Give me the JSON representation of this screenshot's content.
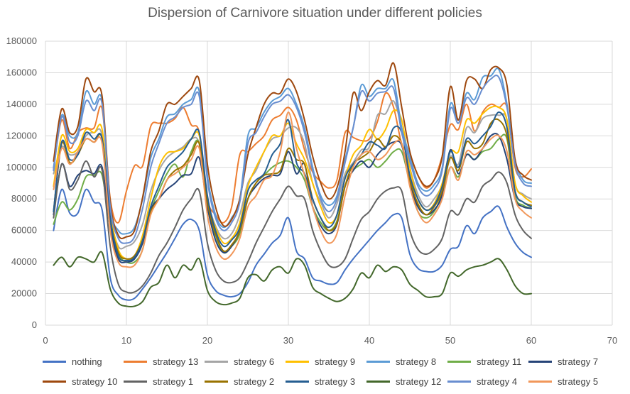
{
  "chart_data": {
    "type": "line",
    "title": "Dispersion of Carnivore situation under different policies",
    "xlabel": "",
    "ylabel": "",
    "xlim": [
      0,
      70
    ],
    "ylim": [
      0,
      180000
    ],
    "x_ticks": [
      0,
      10,
      20,
      30,
      40,
      50,
      60,
      70
    ],
    "y_ticks": [
      0,
      20000,
      40000,
      60000,
      80000,
      100000,
      120000,
      140000,
      160000,
      180000
    ],
    "grid": true,
    "legend_position": "bottom",
    "x": [
      1,
      2,
      3,
      4,
      5,
      6,
      7,
      8,
      9,
      10,
      11,
      12,
      13,
      14,
      15,
      16,
      17,
      18,
      19,
      20,
      21,
      22,
      23,
      24,
      25,
      26,
      27,
      28,
      29,
      30,
      31,
      32,
      33,
      34,
      35,
      36,
      37,
      38,
      39,
      40,
      41,
      42,
      43,
      44,
      45,
      46,
      47,
      48,
      49,
      50,
      51,
      52,
      53,
      54,
      55,
      56,
      57,
      58,
      59,
      60
    ],
    "series": [
      {
        "name": "nothing",
        "color": "#4472C4",
        "values": [
          60000,
          86000,
          71000,
          71000,
          86000,
          78000,
          73000,
          30000,
          19000,
          16000,
          17000,
          23000,
          30000,
          38000,
          46000,
          55000,
          64000,
          67000,
          60000,
          32000,
          22000,
          19000,
          18000,
          20000,
          27000,
          38000,
          45000,
          52000,
          57000,
          68000,
          47000,
          42000,
          30000,
          28000,
          26000,
          27000,
          35000,
          42000,
          48000,
          54000,
          60000,
          65000,
          70000,
          68000,
          45000,
          36000,
          34000,
          34000,
          38000,
          48000,
          50000,
          63000,
          58000,
          68000,
          72000,
          75000,
          62000,
          52000,
          46000,
          43000
        ]
      },
      {
        "name": "strategy 13",
        "color": "#ED7D31",
        "values": [
          99000,
          130000,
          112000,
          122000,
          125000,
          125000,
          137000,
          80000,
          65000,
          85000,
          101000,
          101000,
          126000,
          128000,
          128000,
          131000,
          138000,
          127000,
          122000,
          80000,
          70000,
          65000,
          75000,
          108000,
          110000,
          115000,
          120000,
          130000,
          133000,
          138000,
          130000,
          111000,
          97000,
          91000,
          87000,
          92000,
          122000,
          119000,
          117000,
          118000,
          129000,
          147000,
          138000,
          115000,
          108000,
          95000,
          87000,
          92000,
          107000,
          127000,
          124000,
          140000,
          123000,
          135000,
          140000,
          138000,
          138000,
          100000,
          94000,
          99000
        ]
      },
      {
        "name": "strategy 6",
        "color": "#A5A5A5",
        "values": [
          96000,
          113000,
          108000,
          110000,
          120000,
          122000,
          120000,
          70000,
          50000,
          50000,
          53000,
          64000,
          85000,
          98000,
          106000,
          110000,
          113000,
          118000,
          115000,
          80000,
          63000,
          55000,
          58000,
          70000,
          90000,
          98000,
          110000,
          118000,
          120000,
          125000,
          125000,
          115000,
          90000,
          78000,
          68000,
          77000,
          96000,
          103000,
          111000,
          113000,
          133000,
          134000,
          142000,
          125000,
          100000,
          83000,
          75000,
          80000,
          89000,
          107000,
          102000,
          125000,
          122000,
          131000,
          133000,
          133000,
          130000,
          90000,
          83000,
          80000
        ]
      },
      {
        "name": "strategy 9",
        "color": "#FFC000",
        "values": [
          88000,
          120000,
          110000,
          112000,
          124000,
          122000,
          124000,
          72000,
          48000,
          42000,
          44000,
          57000,
          80000,
          100000,
          109000,
          110000,
          112000,
          118000,
          120000,
          80000,
          62000,
          52000,
          55000,
          65000,
          88000,
          100000,
          110000,
          120000,
          120000,
          128000,
          115000,
          105000,
          90000,
          75000,
          65000,
          70000,
          93000,
          108000,
          114000,
          124000,
          118000,
          124000,
          136000,
          130000,
          100000,
          80000,
          73000,
          77000,
          90000,
          110000,
          110000,
          130000,
          128000,
          134000,
          138000,
          138000,
          130000,
          90000,
          82000,
          78000
        ]
      },
      {
        "name": "strategy 8",
        "color": "#5B9BD5",
        "values": [
          100000,
          133000,
          120000,
          122000,
          148000,
          140000,
          142000,
          75000,
          60000,
          58000,
          62000,
          80000,
          106000,
          118000,
          132000,
          134000,
          140000,
          143000,
          148000,
          95000,
          70000,
          62000,
          68000,
          80000,
          120000,
          125000,
          135000,
          142000,
          145000,
          150000,
          140000,
          125000,
          100000,
          82000,
          76000,
          82000,
          105000,
          125000,
          152000,
          145000,
          150000,
          150000,
          155000,
          125000,
          107000,
          90000,
          85000,
          89000,
          100000,
          140000,
          130000,
          147000,
          143000,
          157000,
          158000,
          162000,
          140000,
          105000,
          92000,
          90000
        ]
      },
      {
        "name": "strategy 11",
        "color": "#70AD47",
        "values": [
          64000,
          78000,
          73000,
          80000,
          94000,
          95000,
          95000,
          62000,
          45000,
          40000,
          40000,
          48000,
          72000,
          85000,
          96000,
          102000,
          94000,
          110000,
          115000,
          75000,
          57000,
          46000,
          50000,
          58000,
          80000,
          90000,
          95000,
          100000,
          103000,
          104000,
          100000,
          92000,
          75000,
          65000,
          60000,
          66000,
          88000,
          98000,
          102000,
          105000,
          100000,
          104000,
          110000,
          110000,
          90000,
          72000,
          68000,
          72000,
          83000,
          100000,
          94000,
          108000,
          105000,
          110000,
          112000,
          118000,
          118000,
          82000,
          76000,
          74000
        ]
      },
      {
        "name": "strategy 7",
        "color": "#264478",
        "values": [
          70000,
          102000,
          88000,
          95000,
          98000,
          96000,
          100000,
          62000,
          42000,
          40000,
          42000,
          52000,
          73000,
          80000,
          86000,
          90000,
          95000,
          96000,
          106000,
          75000,
          54000,
          46000,
          50000,
          60000,
          80000,
          88000,
          93000,
          95000,
          96000,
          110000,
          96000,
          102000,
          75000,
          63000,
          58000,
          64000,
          88000,
          98000,
          104000,
          100000,
          108000,
          113000,
          116000,
          114000,
          90000,
          75000,
          70000,
          73000,
          83000,
          111000,
          96000,
          108000,
          105000,
          112000,
          120000,
          120000,
          105000,
          80000,
          75000,
          74000
        ]
      },
      {
        "name": "strategy 10",
        "color": "#9E480E",
        "values": [
          104000,
          137000,
          122000,
          126000,
          156000,
          148000,
          145000,
          78000,
          57000,
          56000,
          60000,
          81000,
          110000,
          123000,
          140000,
          140000,
          145000,
          150000,
          155000,
          102000,
          75000,
          63000,
          67000,
          80000,
          108000,
          125000,
          140000,
          147000,
          147000,
          156000,
          148000,
          130000,
          107000,
          90000,
          80000,
          87000,
          110000,
          147000,
          136000,
          148000,
          155000,
          152000,
          166000,
          138000,
          110000,
          95000,
          88000,
          92000,
          107000,
          151000,
          130000,
          155000,
          156000,
          150000,
          162000,
          163000,
          152000,
          105000,
          95000,
          92000
        ]
      },
      {
        "name": "strategy 1",
        "color": "#636363",
        "values": [
          68000,
          102000,
          86000,
          92000,
          104000,
          94000,
          98000,
          50000,
          26000,
          21000,
          21000,
          25000,
          33000,
          44000,
          52000,
          62000,
          73000,
          80000,
          85000,
          52000,
          35000,
          28000,
          27000,
          30000,
          40000,
          52000,
          62000,
          72000,
          80000,
          88000,
          82000,
          80000,
          60000,
          47000,
          38000,
          37000,
          42000,
          55000,
          67000,
          72000,
          80000,
          85000,
          87000,
          85000,
          60000,
          48000,
          45000,
          48000,
          55000,
          72000,
          70000,
          80000,
          78000,
          88000,
          92000,
          97000,
          90000,
          70000,
          60000,
          55000
        ]
      },
      {
        "name": "strategy 2",
        "color": "#997300",
        "values": [
          72000,
          115000,
          103000,
          108000,
          118000,
          116000,
          118000,
          68000,
          46000,
          42000,
          44000,
          54000,
          72000,
          80000,
          92000,
          98000,
          101000,
          108000,
          115000,
          78000,
          58000,
          47000,
          51000,
          60000,
          80000,
          90000,
          95000,
          96000,
          98000,
          112000,
          105000,
          102000,
          80000,
          68000,
          60000,
          65000,
          88000,
          102000,
          106000,
          110000,
          118000,
          113000,
          120000,
          115000,
          92000,
          77000,
          70000,
          75000,
          85000,
          106000,
          98000,
          116000,
          112000,
          115000,
          128000,
          130000,
          120000,
          85000,
          78000,
          76000
        ]
      },
      {
        "name": "strategy 3",
        "color": "#255E91",
        "values": [
          72000,
          116000,
          105000,
          108000,
          122000,
          118000,
          118000,
          68000,
          44000,
          41000,
          43000,
          54000,
          75000,
          88000,
          100000,
          105000,
          110000,
          118000,
          122000,
          82000,
          60000,
          50000,
          54000,
          62000,
          85000,
          92000,
          96000,
          108000,
          115000,
          130000,
          103000,
          96000,
          80000,
          68000,
          62000,
          70000,
          93000,
          102000,
          108000,
          116000,
          114000,
          112000,
          125000,
          122000,
          95000,
          80000,
          73000,
          76000,
          88000,
          110000,
          100000,
          118000,
          115000,
          120000,
          126000,
          135000,
          125000,
          85000,
          78000,
          75000
        ]
      },
      {
        "name": "strategy 12",
        "color": "#43682B",
        "values": [
          38000,
          43000,
          37000,
          43000,
          42000,
          40000,
          46000,
          23000,
          14000,
          12000,
          12000,
          15000,
          24000,
          27000,
          38000,
          30000,
          38000,
          35000,
          42000,
          22000,
          15000,
          13000,
          14000,
          17000,
          30000,
          32000,
          28000,
          35000,
          37000,
          33000,
          42000,
          38000,
          24000,
          20000,
          17000,
          15000,
          17000,
          23000,
          33000,
          30000,
          38000,
          34000,
          37000,
          35000,
          26000,
          22000,
          18000,
          18000,
          20000,
          33000,
          31000,
          35000,
          37000,
          38000,
          40000,
          42000,
          35000,
          25000,
          20000,
          20000
        ]
      },
      {
        "name": "strategy 4",
        "color": "#698ED0",
        "values": [
          98000,
          132000,
          116000,
          120000,
          142000,
          136000,
          140000,
          75000,
          55000,
          52000,
          56000,
          74000,
          100000,
          115000,
          128000,
          132000,
          138000,
          140000,
          145000,
          92000,
          68000,
          60000,
          65000,
          78000,
          115000,
          122000,
          132000,
          140000,
          142000,
          146000,
          138000,
          122000,
          98000,
          80000,
          72000,
          80000,
          103000,
          125000,
          148000,
          142000,
          147000,
          148000,
          150000,
          122000,
          104000,
          88000,
          82000,
          86000,
          98000,
          137000,
          128000,
          144000,
          140000,
          150000,
          156000,
          157000,
          138000,
          102000,
          90000,
          88000
        ]
      },
      {
        "name": "strategy 5",
        "color": "#F1975A",
        "values": [
          86000,
          112000,
          102000,
          110000,
          118000,
          116000,
          115000,
          60000,
          40000,
          37000,
          38000,
          48000,
          70000,
          80000,
          92000,
          96000,
          100000,
          105000,
          112000,
          70000,
          50000,
          42000,
          45000,
          55000,
          75000,
          82000,
          92000,
          95000,
          110000,
          135000,
          112000,
          95000,
          75000,
          60000,
          52000,
          58000,
          82000,
          100000,
          108000,
          110000,
          105000,
          108000,
          115000,
          115000,
          88000,
          72000,
          65000,
          70000,
          80000,
          100000,
          92000,
          110000,
          108000,
          112000,
          118000,
          120000,
          110000,
          80000,
          72000,
          68000
        ]
      }
    ]
  }
}
